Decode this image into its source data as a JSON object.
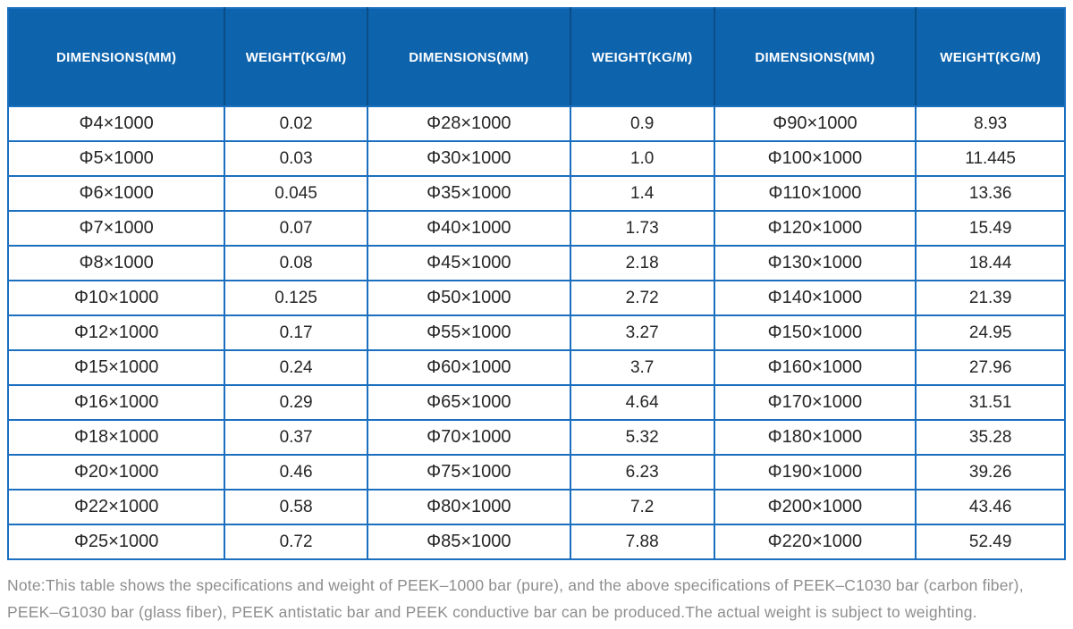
{
  "colors": {
    "header_bg": "#0d63ac",
    "header_divider": "#0a4e88",
    "grid_line": "#1b6fbf",
    "body_text": "#262626",
    "header_text": "#ffffff",
    "note_text": "#8e8e8e"
  },
  "table": {
    "headers": [
      "DIMENSIONS(MM)",
      "WEIGHT(KG/M)",
      "DIMENSIONS(MM)",
      "WEIGHT(KG/M)",
      "DIMENSIONS(MM)",
      "WEIGHT(KG/M)"
    ],
    "rows": [
      [
        "Φ4×1000",
        "0.02",
        "Φ28×1000",
        "0.9",
        "Φ90×1000",
        "8.93"
      ],
      [
        "Φ5×1000",
        "0.03",
        "Φ30×1000",
        "1.0",
        "Φ100×1000",
        "11.445"
      ],
      [
        "Φ6×1000",
        "0.045",
        "Φ35×1000",
        "1.4",
        "Φ110×1000",
        "13.36"
      ],
      [
        "Φ7×1000",
        "0.07",
        "Φ40×1000",
        "1.73",
        "Φ120×1000",
        "15.49"
      ],
      [
        "Φ8×1000",
        "0.08",
        "Φ45×1000",
        "2.18",
        "Φ130×1000",
        "18.44"
      ],
      [
        "Φ10×1000",
        "0.125",
        "Φ50×1000",
        "2.72",
        "Φ140×1000",
        "21.39"
      ],
      [
        "Φ12×1000",
        "0.17",
        "Φ55×1000",
        "3.27",
        "Φ150×1000",
        "24.95"
      ],
      [
        "Φ15×1000",
        "0.24",
        "Φ60×1000",
        "3.7",
        "Φ160×1000",
        "27.96"
      ],
      [
        "Φ16×1000",
        "0.29",
        "Φ65×1000",
        "4.64",
        "Φ170×1000",
        "31.51"
      ],
      [
        "Φ18×1000",
        "0.37",
        "Φ70×1000",
        "5.32",
        "Φ180×1000",
        "35.28"
      ],
      [
        "Φ20×1000",
        "0.46",
        "Φ75×1000",
        "6.23",
        "Φ190×1000",
        "39.26"
      ],
      [
        "Φ22×1000",
        "0.58",
        "Φ80×1000",
        "7.2",
        "Φ200×1000",
        "43.46"
      ],
      [
        "Φ25×1000",
        "0.72",
        "Φ85×1000",
        "7.88",
        "Φ220×1000",
        "52.49"
      ]
    ]
  },
  "note": {
    "lines": [
      "Note:This table shows the specifications and weight of PEEK–1000 bar (pure), and the above specifications of PEEK–C1030 bar (carbon fiber),",
      "PEEK–G1030 bar (glass fiber), PEEK antistatic bar and PEEK conductive bar can be produced.The actual weight is subject to weighting."
    ]
  }
}
